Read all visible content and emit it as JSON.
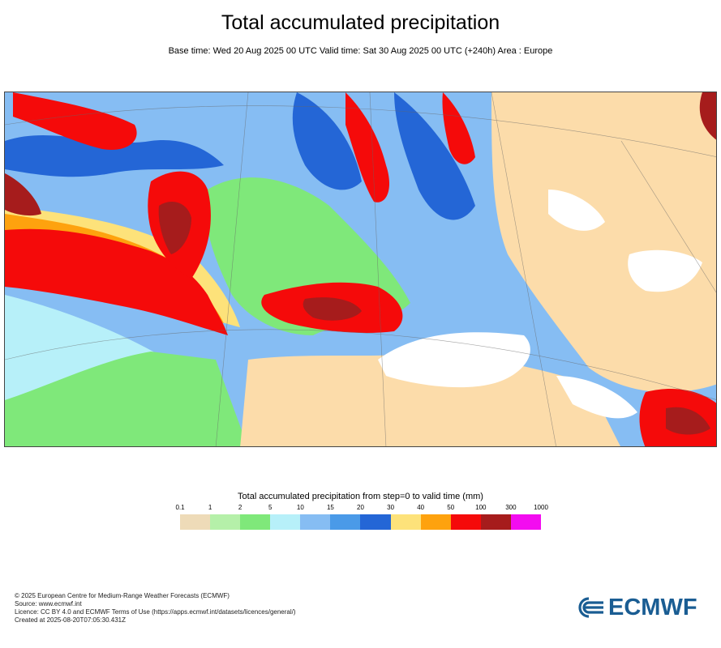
{
  "header": {
    "title": "Total accumulated precipitation",
    "subtitle": "Base time: Wed 20 Aug 2025 00 UTC Valid time: Sat 30 Aug 2025 00 UTC (+240h) Area : Europe"
  },
  "map": {
    "area": "Europe"
  },
  "legend": {
    "title": "Total accumulated precipitation from step=0 to valid time (mm)",
    "ticks": [
      "0.1",
      "1",
      "2",
      "5",
      "10",
      "15",
      "20",
      "30",
      "40",
      "50",
      "100",
      "300",
      "1000"
    ],
    "colors": [
      "#eedbb8",
      "#b5f0a9",
      "#7fe87a",
      "#b7f0f9",
      "#86bdf3",
      "#4a9ae8",
      "#2466d6",
      "#fde27a",
      "#fea20e",
      "#f50a0a",
      "#a61c1c",
      "#f30cf0"
    ]
  },
  "footer": {
    "lines": [
      "© 2025 European Centre for Medium-Range Weather Forecasts (ECMWF)",
      "Source: www.ecmwf.int",
      "Licence: CC BY 4.0 and ECMWF Terms of Use (https://apps.ecmwf.int/datasets/licences/general/)",
      "Created at 2025-08-20T07:05:30.431Z"
    ]
  },
  "logo": {
    "text": "ECMWF",
    "color": "#1a5d93"
  }
}
